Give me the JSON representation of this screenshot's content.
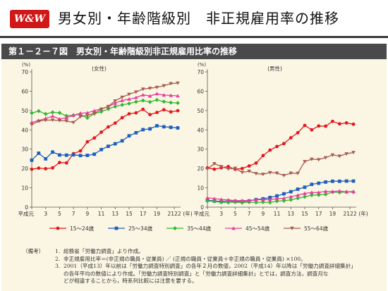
{
  "header": {
    "logo": "W&W",
    "title": "男女別・年齢階級別　非正規雇用率の推移"
  },
  "figure": {
    "label": "第１－２－７図　男女別・年齢階級別非正規雇用比率の推移"
  },
  "chart_data": {
    "type": "line",
    "y_unit": "(%)",
    "ylim": [
      0,
      70
    ],
    "y_ticks": [
      "0",
      "10",
      "20",
      "30",
      "40",
      "50",
      "60",
      "70"
    ],
    "x_tick_labels": [
      "平成元",
      "3",
      "5",
      "7",
      "9",
      "11",
      "13",
      "15",
      "17",
      "19",
      "2122",
      "(年)"
    ],
    "x_tick_years": [
      1,
      3,
      5,
      7,
      9,
      11,
      13,
      15,
      17,
      19,
      21.5
    ],
    "x_range": [
      1,
      22
    ],
    "grid": false,
    "legend_position": "bottom",
    "panels": [
      {
        "title": "(女性)",
        "series": [
          {
            "name": "15～24歳",
            "color": "#e8141c",
            "marker": "circle",
            "x": [
              1,
              2,
              3,
              4,
              5,
              6,
              7,
              8,
              9,
              10,
              11,
              12,
              13,
              14,
              15,
              16,
              17,
              18,
              19,
              20,
              21,
              22
            ],
            "values": [
              19.6,
              20.2,
              19.9,
              20.3,
              23.1,
              22.9,
              27.7,
              29.1,
              33.8,
              35.8,
              38.8,
              41.5,
              43.5,
              46.3,
              48.3,
              48.8,
              50.6,
              47.9,
              49.0,
              50.4,
              49.3,
              49.9
            ]
          },
          {
            "name": "25～34歳",
            "color": "#1f5fbf",
            "marker": "square",
            "x": [
              1,
              2,
              3,
              4,
              5,
              6,
              7,
              8,
              9,
              10,
              11,
              12,
              13,
              14,
              15,
              16,
              17,
              18,
              19,
              20,
              21,
              22
            ],
            "values": [
              24.3,
              27.9,
              25.0,
              28.5,
              27.0,
              26.9,
              27.1,
              26.7,
              26.8,
              27.4,
              29.8,
              31.5,
              32.8,
              34.3,
              36.9,
              38.5,
              40.1,
              40.5,
              42.1,
              41.6,
              41.3,
              41.0
            ]
          },
          {
            "name": "35～44歳",
            "color": "#2eb82e",
            "marker": "diamond",
            "x": [
              1,
              2,
              3,
              4,
              5,
              6,
              7,
              8,
              9,
              10,
              11,
              12,
              13,
              14,
              15,
              16,
              17,
              18,
              19,
              20,
              21,
              22
            ],
            "values": [
              48.7,
              49.7,
              48.2,
              49.1,
              48.8,
              47.2,
              47.6,
              47.9,
              46.2,
              48.4,
              49.4,
              50.8,
              52.1,
              52.9,
              53.6,
              54.5,
              55.2,
              54.4,
              55.5,
              54.6,
              54.1,
              53.9
            ]
          },
          {
            "name": "45～54歳",
            "color": "#e83c9c",
            "marker": "triangle-up",
            "x": [
              1,
              2,
              3,
              4,
              5,
              6,
              7,
              8,
              9,
              10,
              11,
              12,
              13,
              14,
              15,
              16,
              17,
              18,
              19,
              20,
              21,
              22
            ],
            "values": [
              43.9,
              44.8,
              45.9,
              47.1,
              45.6,
              46.3,
              47.5,
              48.6,
              48.8,
              49.9,
              50.9,
              52.0,
              53.8,
              55.2,
              55.9,
              56.7,
              58.1,
              57.5,
              58.7,
              58.0,
              57.8,
              57.6
            ]
          },
          {
            "name": "55～64歳",
            "color": "#a85c50",
            "marker": "triangle-down",
            "x": [
              1,
              2,
              3,
              4,
              5,
              6,
              7,
              8,
              9,
              10,
              11,
              12,
              13,
              14,
              15,
              16,
              17,
              18,
              19,
              20,
              21,
              22
            ],
            "values": [
              42.7,
              44.5,
              45.0,
              45.1,
              44.8,
              44.6,
              43.8,
              46.8,
              47.5,
              48.5,
              50.7,
              52.1,
              55.0,
              56.9,
              58.4,
              59.6,
              61.1,
              61.5,
              62.0,
              62.8,
              63.9,
              64.2
            ]
          }
        ]
      },
      {
        "title": "(男性)",
        "series": [
          {
            "name": "15～24歳",
            "color": "#e8141c",
            "marker": "circle",
            "x": [
              1,
              2,
              3,
              4,
              5,
              6,
              7,
              8,
              9,
              10,
              11,
              12,
              13,
              14,
              15,
              16,
              17,
              18,
              19,
              20,
              21,
              22
            ],
            "values": [
              20.3,
              19.6,
              20.4,
              21.0,
              19.6,
              20.0,
              21.3,
              22.8,
              26.7,
              29.5,
              31.4,
              32.9,
              35.9,
              38.5,
              42.3,
              40.0,
              42.0,
              41.9,
              44.4,
              43.1,
              43.6,
              42.9
            ]
          },
          {
            "name": "25～34歳",
            "color": "#1f5fbf",
            "marker": "square",
            "x": [
              1,
              2,
              3,
              4,
              5,
              6,
              7,
              8,
              9,
              10,
              11,
              12,
              13,
              14,
              15,
              16,
              17,
              18,
              19,
              20,
              21,
              22
            ],
            "values": [
              3.6,
              3.2,
              2.9,
              3.2,
              3.0,
              2.9,
              3.2,
              3.9,
              4.3,
              5.0,
              5.8,
              6.9,
              8.0,
              9.3,
              10.3,
              11.8,
              12.4,
              13.0,
              13.4,
              13.4,
              13.5,
              13.5
            ]
          },
          {
            "name": "35～44歳",
            "color": "#2eb82e",
            "marker": "diamond",
            "x": [
              1,
              2,
              3,
              4,
              5,
              6,
              7,
              8,
              9,
              10,
              11,
              12,
              13,
              14,
              15,
              16,
              17,
              18,
              19,
              20,
              21,
              22
            ],
            "values": [
              3.2,
              3.0,
              2.5,
              2.4,
              2.6,
              2.3,
              2.6,
              2.4,
              2.6,
              2.4,
              3.1,
              3.3,
              3.8,
              4.6,
              5.4,
              6.2,
              6.3,
              6.6,
              7.8,
              7.6,
              7.9,
              7.8
            ]
          },
          {
            "name": "45～54歳",
            "color": "#e83c9c",
            "marker": "triangle-up",
            "x": [
              1,
              2,
              3,
              4,
              5,
              6,
              7,
              8,
              9,
              10,
              11,
              12,
              13,
              14,
              15,
              16,
              17,
              18,
              19,
              20,
              21,
              22
            ],
            "values": [
              4.8,
              4.4,
              4.0,
              3.7,
              3.4,
              3.4,
              3.4,
              3.9,
              3.9,
              3.9,
              4.4,
              4.6,
              5.4,
              6.2,
              7.1,
              7.6,
              7.6,
              8.2,
              8.1,
              8.4,
              7.9,
              8.1
            ]
          },
          {
            "name": "55～64歳",
            "color": "#a85c50",
            "marker": "triangle-down",
            "x": [
              1,
              2,
              3,
              4,
              5,
              6,
              7,
              8,
              9,
              10,
              11,
              12,
              13,
              14,
              15,
              16,
              17,
              18,
              19,
              20,
              21,
              22
            ],
            "values": [
              19.8,
              22.5,
              21.0,
              19.8,
              20.1,
              18.0,
              18.6,
              17.4,
              17.0,
              17.9,
              17.6,
              16.4,
              17.6,
              17.5,
              23.6,
              24.8,
              24.6,
              25.6,
              27.0,
              26.4,
              27.6,
              28.3
            ]
          }
        ]
      }
    ]
  },
  "notes": {
    "head": "（備考）",
    "items": [
      {
        "num": "1.",
        "lines": [
          "総務省「労働力調査」より作成。"
        ]
      },
      {
        "num": "2.",
        "lines": [
          "非正規雇用比率＝(非正規の職員・従業員) ／ (正規の職員・従業員＋非正規の職員・従業員) ×100。"
        ]
      },
      {
        "num": "3.",
        "lines": [
          "2001（平成13）年以前は「労働力調査特別調査」の各年２月の数値，2002（平成14）年以降は「労働力調査詳細集計」",
          "の各年平均の数値により作成。「労働力調査特別調査」と「労働力調査詳細集計」とでは，調査方法，調査月な",
          "どが相違することから，時系列比較には注意を要する。"
        ]
      }
    ]
  }
}
